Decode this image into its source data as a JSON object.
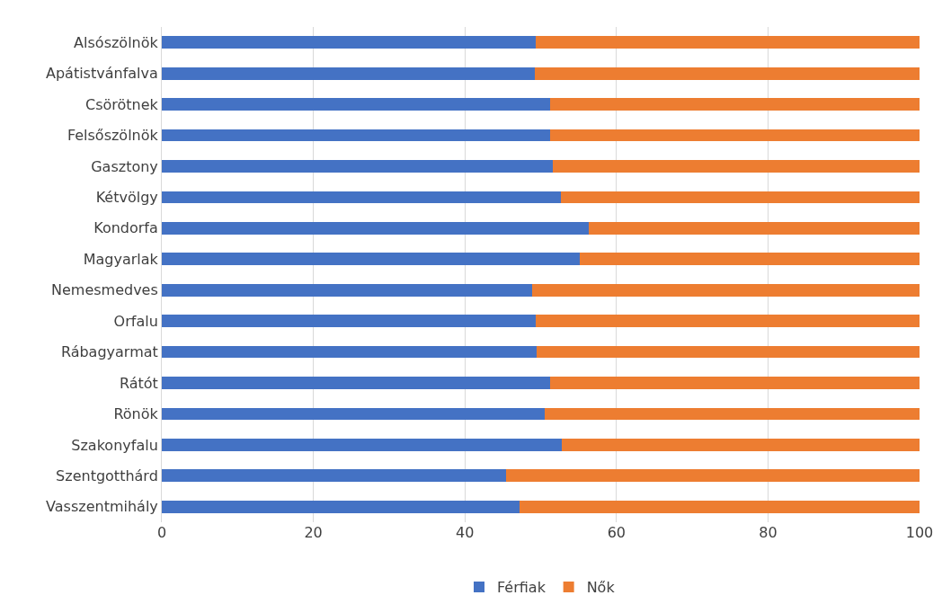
{
  "chart_data": {
    "type": "bar",
    "orientation": "horizontal",
    "stacked": true,
    "categories": [
      "Alsószölnök",
      "Apátistvánfalva",
      "Csörötnek",
      "Felsőszölnök",
      "Gasztony",
      "Kétvölgy",
      "Kondorfa",
      "Magyarlak",
      "Nemesmedves",
      "Orfalu",
      "Rábagyarmat",
      "Rátót",
      "Rönök",
      "Szakonyfalu",
      "Szentgotthárd",
      "Vasszentmihály"
    ],
    "series": [
      {
        "name": "Férfiak",
        "color": "#4472c4",
        "values": [
          49.4,
          49.2,
          51.2,
          51.2,
          51.6,
          52.7,
          56.3,
          55.2,
          48.9,
          49.3,
          49.5,
          51.3,
          50.5,
          52.8,
          45.4,
          47.2
        ]
      },
      {
        "name": "Nők",
        "color": "#ed7d31",
        "values": [
          50.6,
          50.8,
          48.8,
          48.8,
          48.4,
          47.3,
          43.7,
          44.8,
          51.1,
          50.7,
          50.5,
          48.7,
          49.5,
          47.2,
          54.6,
          52.8
        ]
      }
    ],
    "xlim": [
      0,
      100
    ],
    "xticks": [
      0,
      20,
      40,
      60,
      80,
      100
    ],
    "grid": "x",
    "legend": "bottom"
  }
}
